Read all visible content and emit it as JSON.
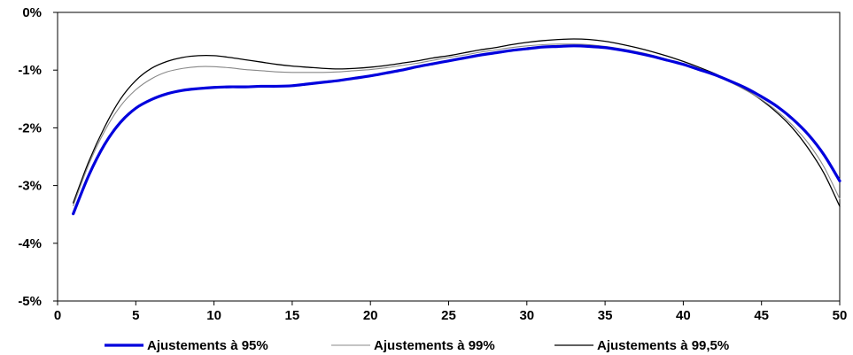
{
  "chart_data": {
    "type": "line",
    "title": "",
    "xlabel": "",
    "ylabel": "",
    "xlim": [
      0,
      50
    ],
    "ylim": [
      -5,
      0
    ],
    "x_ticks": [
      0,
      5,
      10,
      15,
      20,
      25,
      30,
      35,
      40,
      45,
      50
    ],
    "x_tick_labels": [
      "0",
      "5",
      "10",
      "15",
      "20",
      "25",
      "30",
      "35",
      "40",
      "45",
      "50"
    ],
    "y_ticks": [
      0,
      -1,
      -2,
      -3,
      -4,
      -5
    ],
    "y_tick_labels": [
      "0%",
      "-1%",
      "-2%",
      "-3%",
      "-4%",
      "-5%"
    ],
    "grid": false,
    "legend_position": "bottom",
    "x": [
      1,
      2,
      3,
      4,
      5,
      6,
      7,
      8,
      9,
      10,
      11,
      12,
      13,
      14,
      15,
      16,
      17,
      18,
      19,
      20,
      21,
      22,
      23,
      24,
      25,
      26,
      27,
      28,
      29,
      30,
      31,
      32,
      33,
      34,
      35,
      36,
      37,
      38,
      39,
      40,
      41,
      42,
      43,
      44,
      45,
      46,
      47,
      48,
      49,
      50
    ],
    "series": [
      {
        "name": "Ajustements à 95%",
        "color": "#0000dd",
        "values": [
          -3.49,
          -2.82,
          -2.29,
          -1.91,
          -1.66,
          -1.51,
          -1.41,
          -1.35,
          -1.32,
          -1.3,
          -1.29,
          -1.29,
          -1.28,
          -1.28,
          -1.27,
          -1.24,
          -1.21,
          -1.18,
          -1.14,
          -1.1,
          -1.05,
          -1.0,
          -0.94,
          -0.89,
          -0.84,
          -0.79,
          -0.74,
          -0.7,
          -0.66,
          -0.63,
          -0.6,
          -0.59,
          -0.58,
          -0.59,
          -0.61,
          -0.65,
          -0.7,
          -0.76,
          -0.83,
          -0.9,
          -0.99,
          -1.08,
          -1.19,
          -1.31,
          -1.46,
          -1.63,
          -1.85,
          -2.12,
          -2.47,
          -2.92
        ]
      },
      {
        "name": "Ajustements à 99%",
        "color": "#888888",
        "values": [
          -3.35,
          -2.63,
          -2.06,
          -1.63,
          -1.34,
          -1.15,
          -1.03,
          -0.97,
          -0.94,
          -0.94,
          -0.96,
          -0.99,
          -1.01,
          -1.03,
          -1.04,
          -1.04,
          -1.04,
          -1.03,
          -1.01,
          -0.99,
          -0.96,
          -0.92,
          -0.88,
          -0.83,
          -0.78,
          -0.74,
          -0.69,
          -0.65,
          -0.61,
          -0.58,
          -0.56,
          -0.55,
          -0.55,
          -0.56,
          -0.59,
          -0.63,
          -0.68,
          -0.74,
          -0.82,
          -0.9,
          -0.99,
          -1.09,
          -1.21,
          -1.35,
          -1.51,
          -1.71,
          -1.96,
          -2.27,
          -2.68,
          -3.23
        ]
      },
      {
        "name": "Ajustements à 99,5%",
        "color": "#000000",
        "values": [
          -3.3,
          -2.58,
          -1.99,
          -1.51,
          -1.18,
          -0.97,
          -0.85,
          -0.78,
          -0.75,
          -0.75,
          -0.78,
          -0.82,
          -0.86,
          -0.9,
          -0.93,
          -0.95,
          -0.97,
          -0.98,
          -0.97,
          -0.95,
          -0.92,
          -0.88,
          -0.84,
          -0.79,
          -0.75,
          -0.7,
          -0.65,
          -0.61,
          -0.56,
          -0.52,
          -0.49,
          -0.47,
          -0.46,
          -0.47,
          -0.5,
          -0.55,
          -0.61,
          -0.68,
          -0.76,
          -0.85,
          -0.95,
          -1.06,
          -1.19,
          -1.34,
          -1.52,
          -1.74,
          -2.01,
          -2.36,
          -2.79,
          -3.36
        ]
      }
    ]
  }
}
